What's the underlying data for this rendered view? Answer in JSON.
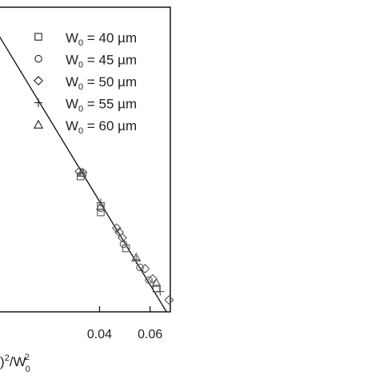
{
  "chart_data": {
    "type": "scatter",
    "title": "",
    "xlabel": ")²/W₀²",
    "xlabel_parts": {
      "main": ")",
      "sup1": "2",
      "slash": "/W",
      "sub": "0",
      "sup2": "2"
    },
    "ylabel": "",
    "x_ticks": [
      {
        "value": 0.04,
        "label": "0.04"
      },
      {
        "value": 0.06,
        "label": "0.06"
      }
    ],
    "xlim": [
      0.0,
      0.068
    ],
    "ylim": [
      -0.72,
      0.0
    ],
    "grid": false,
    "legend_position": "top-right",
    "series": [
      {
        "name": "W0 = 40 µm",
        "label": {
          "w": "W",
          "sub": "0",
          "rest": " = 40 µm"
        },
        "marker": "square",
        "points": [
          [
            0.0325,
            -0.4
          ],
          [
            0.0405,
            -0.47
          ],
          [
            0.0405,
            -0.485
          ],
          [
            0.0505,
            -0.57
          ],
          [
            0.0625,
            -0.665
          ]
        ]
      },
      {
        "name": "W0 = 45 µm",
        "label": {
          "w": "W",
          "sub": "0",
          "rest": " = 45 µm"
        },
        "marker": "circle",
        "points": [
          [
            0.0335,
            -0.392
          ],
          [
            0.0405,
            -0.475
          ],
          [
            0.0495,
            -0.56
          ],
          [
            0.056,
            -0.615
          ],
          [
            0.0595,
            -0.645
          ]
        ]
      },
      {
        "name": "W0 = 50 µm",
        "label": {
          "w": "W",
          "sub": "0",
          "rest": " = 50 µm"
        },
        "marker": "diamond",
        "points": [
          [
            0.032,
            -0.388
          ],
          [
            0.0468,
            -0.522
          ],
          [
            0.0478,
            -0.532
          ],
          [
            0.049,
            -0.545
          ],
          [
            0.058,
            -0.618
          ],
          [
            0.061,
            -0.642
          ],
          [
            0.0675,
            -0.692
          ]
        ]
      },
      {
        "name": "W0 = 55 µm",
        "label": {
          "w": "W",
          "sub": "0",
          "rest": " = 55 µm"
        },
        "marker": "plus",
        "points": [
          [
            0.0335,
            -0.39
          ],
          [
            0.0405,
            -0.462
          ],
          [
            0.0545,
            -0.597
          ],
          [
            0.064,
            -0.672
          ]
        ]
      },
      {
        "name": "W0 = 60 µm",
        "label": {
          "w": "W",
          "sub": "0",
          "rest": " = 60 µm"
        },
        "marker": "triangle",
        "points": [
          [
            0.033,
            -0.392
          ],
          [
            0.0405,
            -0.47
          ],
          [
            0.0545,
            -0.592
          ],
          [
            0.0625,
            -0.652
          ]
        ]
      }
    ],
    "fit_line": {
      "x": [
        0.0,
        0.0665
      ],
      "y": [
        -0.065,
        -0.72
      ]
    }
  }
}
